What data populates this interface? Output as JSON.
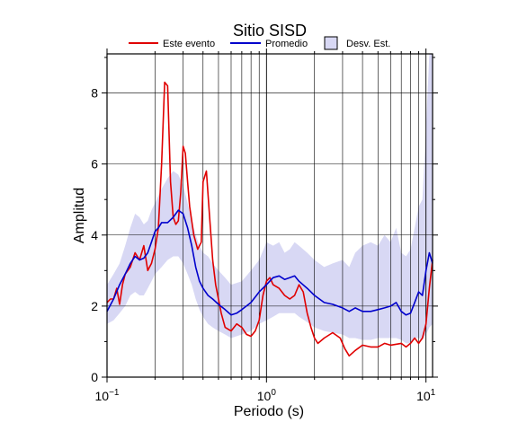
{
  "chart_data": {
    "type": "line",
    "title": "Sitio SISD",
    "xlabel": "Periodo (s)",
    "ylabel": "Amplitud",
    "xscale": "log",
    "xlim": [
      0.1,
      11
    ],
    "ylim": [
      0,
      9.1
    ],
    "grid": "vertical minor and major lines on log x-axis",
    "legend_position": "top",
    "x_tick_labels": [
      {
        "value": 0.1,
        "base": "10",
        "exp": "−1"
      },
      {
        "value": 1,
        "text": "10⁰",
        "base": "10",
        "exp": "0"
      },
      {
        "value": 10,
        "base": "10",
        "exp": "1"
      }
    ],
    "y_ticks": [
      0,
      2,
      4,
      6,
      8
    ],
    "series": [
      {
        "name": "Este evento",
        "color": "#e00000",
        "points": [
          [
            0.1,
            2.1
          ],
          [
            0.105,
            2.2
          ],
          [
            0.11,
            2.2
          ],
          [
            0.115,
            2.5
          ],
          [
            0.12,
            2.05
          ],
          [
            0.125,
            2.6
          ],
          [
            0.13,
            2.9
          ],
          [
            0.14,
            3.1
          ],
          [
            0.15,
            3.5
          ],
          [
            0.16,
            3.3
          ],
          [
            0.17,
            3.7
          ],
          [
            0.18,
            3.0
          ],
          [
            0.19,
            3.2
          ],
          [
            0.2,
            3.6
          ],
          [
            0.21,
            4.2
          ],
          [
            0.22,
            6.0
          ],
          [
            0.23,
            8.3
          ],
          [
            0.24,
            8.2
          ],
          [
            0.25,
            5.5
          ],
          [
            0.26,
            4.5
          ],
          [
            0.27,
            4.3
          ],
          [
            0.28,
            4.4
          ],
          [
            0.29,
            5.2
          ],
          [
            0.3,
            6.5
          ],
          [
            0.31,
            6.3
          ],
          [
            0.32,
            5.5
          ],
          [
            0.33,
            4.8
          ],
          [
            0.35,
            4.0
          ],
          [
            0.37,
            3.6
          ],
          [
            0.39,
            3.8
          ],
          [
            0.4,
            5.5
          ],
          [
            0.42,
            5.8
          ],
          [
            0.44,
            4.5
          ],
          [
            0.46,
            3.3
          ],
          [
            0.48,
            2.6
          ],
          [
            0.5,
            2.2
          ],
          [
            0.52,
            1.8
          ],
          [
            0.55,
            1.4
          ],
          [
            0.6,
            1.3
          ],
          [
            0.65,
            1.5
          ],
          [
            0.7,
            1.4
          ],
          [
            0.75,
            1.2
          ],
          [
            0.8,
            1.15
          ],
          [
            0.85,
            1.3
          ],
          [
            0.9,
            1.6
          ],
          [
            0.95,
            2.3
          ],
          [
            1.0,
            2.7
          ],
          [
            1.05,
            2.8
          ],
          [
            1.1,
            2.6
          ],
          [
            1.2,
            2.5
          ],
          [
            1.3,
            2.3
          ],
          [
            1.4,
            2.2
          ],
          [
            1.5,
            2.3
          ],
          [
            1.6,
            2.6
          ],
          [
            1.7,
            2.4
          ],
          [
            1.8,
            1.8
          ],
          [
            1.9,
            1.4
          ],
          [
            2.0,
            1.1
          ],
          [
            2.1,
            0.95
          ],
          [
            2.3,
            1.1
          ],
          [
            2.6,
            1.25
          ],
          [
            2.9,
            1.1
          ],
          [
            3.1,
            0.8
          ],
          [
            3.3,
            0.6
          ],
          [
            3.6,
            0.75
          ],
          [
            4.0,
            0.9
          ],
          [
            4.5,
            0.85
          ],
          [
            5.0,
            0.85
          ],
          [
            5.5,
            0.95
          ],
          [
            6.0,
            0.9
          ],
          [
            7.0,
            0.95
          ],
          [
            7.5,
            0.85
          ],
          [
            8.0,
            0.95
          ],
          [
            8.5,
            1.1
          ],
          [
            9.0,
            0.95
          ],
          [
            9.5,
            1.1
          ],
          [
            10.0,
            1.5
          ],
          [
            10.5,
            2.5
          ],
          [
            11.0,
            3.3
          ]
        ]
      },
      {
        "name": "Promedio",
        "color": "#0000cc",
        "points": [
          [
            0.1,
            1.85
          ],
          [
            0.11,
            2.2
          ],
          [
            0.12,
            2.6
          ],
          [
            0.13,
            2.9
          ],
          [
            0.14,
            3.2
          ],
          [
            0.15,
            3.4
          ],
          [
            0.16,
            3.3
          ],
          [
            0.17,
            3.35
          ],
          [
            0.18,
            3.5
          ],
          [
            0.19,
            3.8
          ],
          [
            0.2,
            4.1
          ],
          [
            0.21,
            4.2
          ],
          [
            0.22,
            4.35
          ],
          [
            0.24,
            4.35
          ],
          [
            0.26,
            4.5
          ],
          [
            0.28,
            4.7
          ],
          [
            0.3,
            4.6
          ],
          [
            0.32,
            4.2
          ],
          [
            0.34,
            3.7
          ],
          [
            0.36,
            3.1
          ],
          [
            0.38,
            2.7
          ],
          [
            0.4,
            2.5
          ],
          [
            0.43,
            2.3
          ],
          [
            0.46,
            2.2
          ],
          [
            0.5,
            2.05
          ],
          [
            0.55,
            1.9
          ],
          [
            0.6,
            1.75
          ],
          [
            0.65,
            1.8
          ],
          [
            0.7,
            1.9
          ],
          [
            0.8,
            2.1
          ],
          [
            0.9,
            2.4
          ],
          [
            1.0,
            2.6
          ],
          [
            1.1,
            2.8
          ],
          [
            1.2,
            2.85
          ],
          [
            1.3,
            2.75
          ],
          [
            1.4,
            2.8
          ],
          [
            1.5,
            2.85
          ],
          [
            1.6,
            2.7
          ],
          [
            1.8,
            2.5
          ],
          [
            2.0,
            2.3
          ],
          [
            2.3,
            2.1
          ],
          [
            2.6,
            2.05
          ],
          [
            3.0,
            1.95
          ],
          [
            3.3,
            1.85
          ],
          [
            3.6,
            1.95
          ],
          [
            4.0,
            1.85
          ],
          [
            4.5,
            1.85
          ],
          [
            5.0,
            1.9
          ],
          [
            5.5,
            1.95
          ],
          [
            6.0,
            2.0
          ],
          [
            6.5,
            2.1
          ],
          [
            7.0,
            1.85
          ],
          [
            7.5,
            1.75
          ],
          [
            8.0,
            1.8
          ],
          [
            8.5,
            2.1
          ],
          [
            9.0,
            2.4
          ],
          [
            9.5,
            2.3
          ],
          [
            10.0,
            3.0
          ],
          [
            10.5,
            3.5
          ],
          [
            11.0,
            3.2
          ]
        ]
      }
    ],
    "band": {
      "name": "Desv. Est.",
      "fill": "#d8d8f4",
      "edge": "#000000",
      "upper": [
        [
          0.1,
          2.6
        ],
        [
          0.11,
          2.9
        ],
        [
          0.12,
          3.2
        ],
        [
          0.13,
          3.7
        ],
        [
          0.14,
          4.2
        ],
        [
          0.15,
          4.6
        ],
        [
          0.16,
          4.5
        ],
        [
          0.17,
          4.3
        ],
        [
          0.18,
          4.4
        ],
        [
          0.19,
          4.7
        ],
        [
          0.2,
          4.9
        ],
        [
          0.22,
          5.3
        ],
        [
          0.24,
          5.6
        ],
        [
          0.26,
          5.8
        ],
        [
          0.28,
          5.7
        ],
        [
          0.3,
          5.4
        ],
        [
          0.32,
          4.9
        ],
        [
          0.34,
          4.4
        ],
        [
          0.36,
          4.0
        ],
        [
          0.38,
          3.7
        ],
        [
          0.4,
          3.5
        ],
        [
          0.43,
          3.4
        ],
        [
          0.46,
          3.2
        ],
        [
          0.5,
          3.0
        ],
        [
          0.55,
          2.8
        ],
        [
          0.6,
          2.6
        ],
        [
          0.7,
          2.7
        ],
        [
          0.8,
          3.0
        ],
        [
          0.9,
          3.3
        ],
        [
          1.0,
          3.8
        ],
        [
          1.1,
          3.7
        ],
        [
          1.2,
          3.8
        ],
        [
          1.3,
          3.5
        ],
        [
          1.4,
          3.6
        ],
        [
          1.5,
          3.8
        ],
        [
          1.6,
          3.7
        ],
        [
          1.8,
          3.5
        ],
        [
          2.0,
          3.3
        ],
        [
          2.3,
          3.1
        ],
        [
          2.6,
          3.2
        ],
        [
          3.0,
          3.3
        ],
        [
          3.3,
          3.1
        ],
        [
          3.6,
          3.5
        ],
        [
          4.0,
          3.7
        ],
        [
          4.5,
          3.8
        ],
        [
          5.0,
          3.7
        ],
        [
          5.5,
          4.0
        ],
        [
          6.0,
          3.8
        ],
        [
          6.5,
          4.2
        ],
        [
          7.0,
          3.5
        ],
        [
          7.5,
          3.4
        ],
        [
          8.0,
          3.6
        ],
        [
          8.5,
          4.2
        ],
        [
          9.0,
          4.8
        ],
        [
          9.5,
          5.0
        ],
        [
          10.0,
          7.0
        ],
        [
          10.5,
          9.1
        ],
        [
          11.0,
          9.1
        ]
      ],
      "lower": [
        [
          0.1,
          1.5
        ],
        [
          0.11,
          1.6
        ],
        [
          0.12,
          1.8
        ],
        [
          0.13,
          2.0
        ],
        [
          0.14,
          2.3
        ],
        [
          0.15,
          2.4
        ],
        [
          0.16,
          2.3
        ],
        [
          0.17,
          2.3
        ],
        [
          0.18,
          2.5
        ],
        [
          0.19,
          2.7
        ],
        [
          0.2,
          2.9
        ],
        [
          0.22,
          3.1
        ],
        [
          0.24,
          3.3
        ],
        [
          0.26,
          3.4
        ],
        [
          0.28,
          3.4
        ],
        [
          0.3,
          3.2
        ],
        [
          0.32,
          2.9
        ],
        [
          0.34,
          2.6
        ],
        [
          0.36,
          2.2
        ],
        [
          0.38,
          1.9
        ],
        [
          0.4,
          1.7
        ],
        [
          0.43,
          1.5
        ],
        [
          0.46,
          1.4
        ],
        [
          0.5,
          1.3
        ],
        [
          0.55,
          1.2
        ],
        [
          0.6,
          1.1
        ],
        [
          0.7,
          1.2
        ],
        [
          0.8,
          1.3
        ],
        [
          0.9,
          1.5
        ],
        [
          1.0,
          1.6
        ],
        [
          1.1,
          1.7
        ],
        [
          1.2,
          1.8
        ],
        [
          1.3,
          1.8
        ],
        [
          1.4,
          1.8
        ],
        [
          1.5,
          1.8
        ],
        [
          1.6,
          1.7
        ],
        [
          1.8,
          1.55
        ],
        [
          2.0,
          1.4
        ],
        [
          2.3,
          1.3
        ],
        [
          2.6,
          1.25
        ],
        [
          3.0,
          1.2
        ],
        [
          3.3,
          1.1
        ],
        [
          3.6,
          1.1
        ],
        [
          4.0,
          1.05
        ],
        [
          4.5,
          1.05
        ],
        [
          5.0,
          1.1
        ],
        [
          5.5,
          1.1
        ],
        [
          6.0,
          1.1
        ],
        [
          6.5,
          1.1
        ],
        [
          7.0,
          1.05
        ],
        [
          7.5,
          0.95
        ],
        [
          8.0,
          0.95
        ],
        [
          8.5,
          1.1
        ],
        [
          9.0,
          1.1
        ],
        [
          9.5,
          1.05
        ],
        [
          10.0,
          1.2
        ],
        [
          10.5,
          1.4
        ],
        [
          11.0,
          1.5
        ]
      ]
    }
  }
}
